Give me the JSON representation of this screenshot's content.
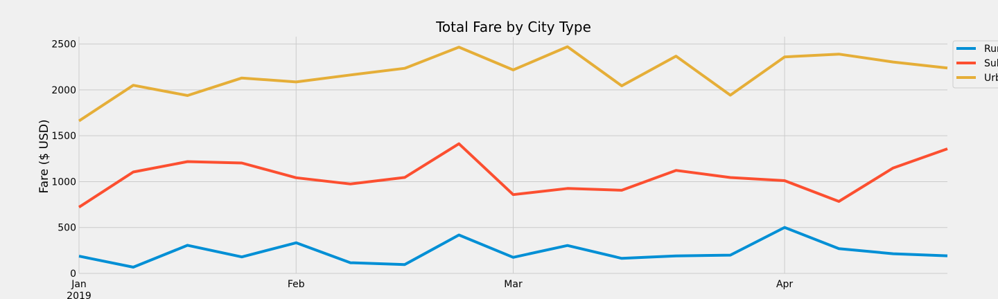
{
  "chart_data": {
    "type": "line",
    "title": "Total Fare by City Type",
    "xlabel": "",
    "ylabel": "Fare ($ USD)",
    "x": [
      "2019-01-06",
      "2019-01-13",
      "2019-01-20",
      "2019-01-27",
      "2019-02-03",
      "2019-02-10",
      "2019-02-17",
      "2019-02-24",
      "2019-03-03",
      "2019-03-10",
      "2019-03-17",
      "2019-03-24",
      "2019-03-31",
      "2019-04-07",
      "2019-04-14",
      "2019-04-21",
      "2019-04-28"
    ],
    "xlim": [
      "2019-01-06",
      "2019-04-28"
    ],
    "x_ticks": [
      {
        "date": "2019-01-06",
        "label": "Jan",
        "sublabel": "2019"
      },
      {
        "date": "2019-02-03",
        "label": "Feb",
        "sublabel": ""
      },
      {
        "date": "2019-03-03",
        "label": "Mar",
        "sublabel": ""
      },
      {
        "date": "2019-04-07",
        "label": "Apr",
        "sublabel": ""
      }
    ],
    "ylim": [
      0,
      2580
    ],
    "y_ticks": [
      0,
      500,
      1000,
      1500,
      2000,
      2500
    ],
    "grid": true,
    "legend_position": "top-right",
    "series": [
      {
        "name": "Rural",
        "legend_text": "Rur",
        "color": "#008fd5",
        "values": [
          187.92,
          67.65,
          306.0,
          179.69,
          333.08,
          115.8,
          95.82,
          419.06,
          175.14,
          303.94,
          163.39,
          189.76,
          199.42,
          501.24,
          269.79,
          214.14,
          191.85
        ]
      },
      {
        "name": "Suburban",
        "legend_text": "Sul",
        "color": "#fc4f30",
        "values": [
          721.6,
          1105.13,
          1218.2,
          1203.28,
          1042.79,
          974.34,
          1045.5,
          1412.74,
          858.46,
          925.27,
          906.2,
          1122.2,
          1045.06,
          1010.73,
          784.82,
          1149.27,
          1357.75
        ]
      },
      {
        "name": "Urban",
        "legend_text": "Urb",
        "color": "#e5ae38",
        "values": [
          1661.68,
          2050.43,
          1939.02,
          2129.51,
          2086.94,
          2162.64,
          2235.07,
          2466.29,
          2218.2,
          2470.93,
          2044.42,
          2368.37,
          1942.77,
          2360.07,
          2389.68,
          2303.8,
          2238.29
        ]
      }
    ]
  }
}
